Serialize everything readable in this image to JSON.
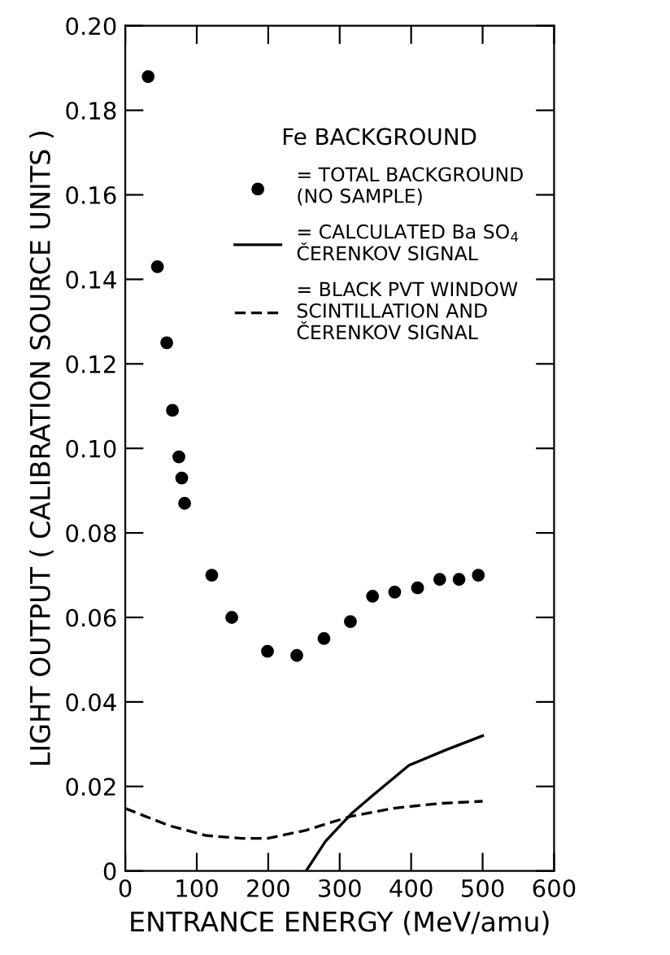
{
  "chart_data": {
    "type": "scatter",
    "xlabel": "ENTRANCE ENERGY (MeV/amu)",
    "ylabel": "LIGHT OUTPUT ( CALIBRATION SOURCE UNITS )",
    "legend_title": "Fe BACKGROUND",
    "legend": "top right",
    "grid": false,
    "xlim": [
      0,
      600
    ],
    "ylim": [
      0,
      0.2
    ],
    "xticks": [
      0,
      100,
      200,
      300,
      400,
      500,
      600
    ],
    "yticks": [
      0,
      0.02,
      0.04,
      0.06,
      0.08,
      {
        "value": 0.1,
        "label": "0.10"
      },
      0.12,
      0.14,
      0.16,
      0.18,
      {
        "value": 0.2,
        "label": "0.20"
      }
    ],
    "series": [
      {
        "name": "= TOTAL BACKGROUND\n(NO SAMPLE)",
        "marker": "circle",
        "color": "#000000",
        "x": [
          32,
          45,
          58,
          66,
          75,
          79,
          83,
          121,
          149,
          199,
          240,
          278,
          315,
          346,
          377,
          409,
          440,
          467,
          494
        ],
        "values": [
          0.188,
          0.143,
          0.125,
          0.109,
          0.098,
          0.093,
          0.087,
          0.07,
          0.06,
          0.052,
          0.051,
          0.055,
          0.059,
          0.065,
          0.066,
          0.067,
          0.069,
          0.069,
          0.07
        ]
      },
      {
        "name": "= CALCULATED Ba SO$_{4}$\nČERENKOV SIGNAL",
        "type": "line",
        "line_style": "solid",
        "color": "#000000",
        "x": [
          253,
          280,
          316,
          347,
          397,
          448,
          500
        ],
        "values": [
          0,
          0.007,
          0.0135,
          0.018,
          0.025,
          0.0286,
          0.032
        ]
      },
      {
        "name": "= BLACK PVT WINDOW\nSCINTILLATION AND\nČERENKOV SIGNAL",
        "type": "line",
        "line_style": "dashed",
        "color": "#000000",
        "x": [
          0,
          62,
          113,
          163,
          199,
          252,
          315,
          378,
          441,
          500
        ],
        "values": [
          0.0148,
          0.0107,
          0.0084,
          0.0077,
          0.0077,
          0.0096,
          0.0129,
          0.0149,
          0.016,
          0.0165
        ]
      }
    ]
  }
}
